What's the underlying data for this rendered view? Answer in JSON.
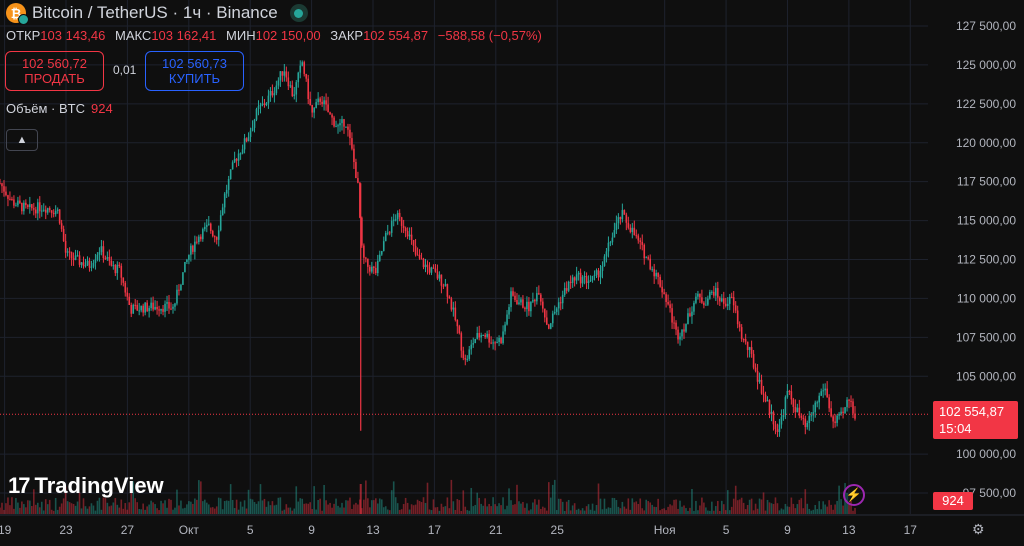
{
  "header": {
    "symbol": "Bitcoin / TetherUS · 1ч · Binance",
    "coin_glyph": "₿",
    "open_label": "ОТКР",
    "open": "103 143,46",
    "high_label": "МАКС",
    "high": "103 162,41",
    "low_label": "МИН",
    "low": "102 150,00",
    "close_label": "ЗАКР",
    "close": "102 554,87",
    "change": "−588,58 (−0,57%)"
  },
  "trade": {
    "sell_price": "102 560,72",
    "sell_label": "ПРОДАТЬ",
    "spread": "0,01",
    "buy_price": "102 560,73",
    "buy_label": "КУПИТЬ"
  },
  "volume_legend": {
    "label": "Объём · BTC",
    "value": "924"
  },
  "branding": {
    "name": "TradingView",
    "mark": "17"
  },
  "current_price": {
    "value": "102 554,87",
    "countdown": "15:04"
  },
  "current_volume": "924",
  "icons": {
    "collapse": "chevron-up-icon",
    "flash": "lightning-icon",
    "settings": "gear-icon"
  },
  "colors": {
    "up": "#26a69a",
    "down": "#f23645",
    "background": "#0f0f0f",
    "grid": "#1e222d"
  },
  "chart_data": {
    "type": "candlestick",
    "y_ticks": [
      "127 500,00",
      "125 000,00",
      "122 500,00",
      "120 000,00",
      "117 500,00",
      "115 000,00",
      "112 500,00",
      "110 000,00",
      "107 500,00",
      "105 000,00",
      "100 000,00",
      "97 500,00"
    ],
    "y_tick_values": [
      127500,
      125000,
      122500,
      120000,
      117500,
      115000,
      112500,
      110000,
      107500,
      105000,
      100000,
      97500
    ],
    "x_ticks": [
      "19",
      "23",
      "27",
      "Окт",
      "5",
      "9",
      "13",
      "17",
      "21",
      "25",
      "Ноя",
      "5",
      "9",
      "13",
      "17"
    ],
    "x_tick_days": [
      -12,
      -8,
      -4,
      0,
      4,
      8,
      12,
      16,
      20,
      24,
      31,
      35,
      39,
      43,
      47
    ],
    "ylim": [
      97500,
      127500
    ],
    "x_start_day": -12.3,
    "x_end_day": 43.4,
    "close_series": [
      [
        -12.3,
        117400
      ],
      [
        -11.5,
        116200
      ],
      [
        -10.5,
        115700
      ],
      [
        -9.5,
        115900
      ],
      [
        -8.5,
        115600
      ],
      [
        -8.0,
        112800
      ],
      [
        -7.2,
        112400
      ],
      [
        -6.5,
        112100
      ],
      [
        -5.8,
        113200
      ],
      [
        -5.0,
        112000
      ],
      [
        -4.5,
        111800
      ],
      [
        -3.8,
        109300
      ],
      [
        -3.0,
        109400
      ],
      [
        -2.0,
        109500
      ],
      [
        -1.0,
        109400
      ],
      [
        -0.5,
        111200
      ],
      [
        0,
        112800
      ],
      [
        0.6,
        114000
      ],
      [
        1.3,
        114600
      ],
      [
        1.8,
        113900
      ],
      [
        2.3,
        116500
      ],
      [
        3.0,
        118900
      ],
      [
        3.8,
        120300
      ],
      [
        4.5,
        122100
      ],
      [
        5.0,
        122600
      ],
      [
        5.6,
        123500
      ],
      [
        6.2,
        124800
      ],
      [
        6.8,
        123000
      ],
      [
        7.4,
        125200
      ],
      [
        8.0,
        121800
      ],
      [
        8.6,
        122900
      ],
      [
        9.2,
        121700
      ],
      [
        9.8,
        120900
      ],
      [
        10.2,
        121500
      ],
      [
        10.6,
        119600
      ],
      [
        11.0,
        117400
      ],
      [
        11.3,
        112700
      ],
      [
        11.6,
        112100
      ],
      [
        12.2,
        111700
      ],
      [
        12.8,
        113900
      ],
      [
        13.5,
        115300
      ],
      [
        14.2,
        114500
      ],
      [
        14.8,
        112700
      ],
      [
        15.4,
        112100
      ],
      [
        16.0,
        111600
      ],
      [
        16.7,
        110900
      ],
      [
        17.4,
        108500
      ],
      [
        18.0,
        105900
      ],
      [
        18.6,
        107400
      ],
      [
        19.2,
        107800
      ],
      [
        19.8,
        107200
      ],
      [
        20.4,
        107400
      ],
      [
        21.0,
        110200
      ],
      [
        21.6,
        109700
      ],
      [
        22.2,
        109400
      ],
      [
        22.8,
        110600
      ],
      [
        23.4,
        108100
      ],
      [
        24.0,
        109500
      ],
      [
        24.6,
        110700
      ],
      [
        25.2,
        111400
      ],
      [
        25.8,
        111200
      ],
      [
        26.4,
        111200
      ],
      [
        27.0,
        112200
      ],
      [
        27.6,
        114100
      ],
      [
        28.2,
        115400
      ],
      [
        28.8,
        114500
      ],
      [
        29.4,
        113400
      ],
      [
        30.0,
        112300
      ],
      [
        30.6,
        111200
      ],
      [
        31.2,
        109700
      ],
      [
        31.8,
        107600
      ],
      [
        32.4,
        108400
      ],
      [
        33.0,
        110100
      ],
      [
        33.6,
        109800
      ],
      [
        34.2,
        110500
      ],
      [
        34.8,
        109700
      ],
      [
        35.4,
        109900
      ],
      [
        36.0,
        107600
      ],
      [
        36.6,
        106400
      ],
      [
        37.2,
        104500
      ],
      [
        37.8,
        102900
      ],
      [
        38.4,
        101400
      ],
      [
        39.0,
        104000
      ],
      [
        39.6,
        102800
      ],
      [
        40.2,
        101600
      ],
      [
        40.8,
        103100
      ],
      [
        41.4,
        104400
      ],
      [
        42.0,
        101900
      ],
      [
        42.6,
        102500
      ],
      [
        43.0,
        103600
      ],
      [
        43.4,
        102555
      ]
    ]
  }
}
